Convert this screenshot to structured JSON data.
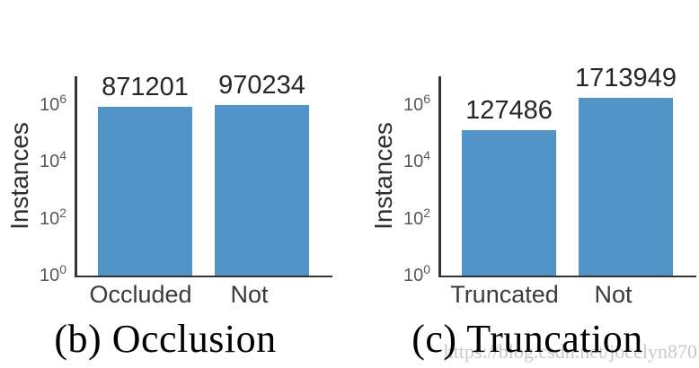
{
  "figure": {
    "background": "#ffffff",
    "watermark": {
      "text": "https://blog.csdn.net/jocelyn870",
      "color": "#c9c9c9"
    }
  },
  "chart_data": [
    {
      "type": "bar",
      "caption": "(b) Occlusion",
      "ylabel": "Instances",
      "xlabel": "",
      "yscale": "log",
      "ylim": [
        1,
        10000000
      ],
      "ytick_exponents": [
        0,
        2,
        4,
        6
      ],
      "ytick_labels": [
        "10^0",
        "10^2",
        "10^4",
        "10^6"
      ],
      "grid": false,
      "legend": false,
      "categories": [
        "Occluded",
        "Not"
      ],
      "values": [
        871201,
        970234
      ],
      "bar_labels": [
        "871201",
        "970234"
      ],
      "bar_color": "#5294c7",
      "axis_color": "#333333"
    },
    {
      "type": "bar",
      "caption": "(c) Truncation",
      "ylabel": "Instances",
      "xlabel": "",
      "yscale": "log",
      "ylim": [
        1,
        10000000
      ],
      "ytick_exponents": [
        0,
        2,
        4,
        6
      ],
      "ytick_labels": [
        "10^0",
        "10^2",
        "10^4",
        "10^6"
      ],
      "grid": false,
      "legend": false,
      "categories": [
        "Truncated",
        "Not"
      ],
      "values": [
        127486,
        1713949
      ],
      "bar_labels": [
        "127486",
        "1713949"
      ],
      "bar_color": "#5294c7",
      "axis_color": "#333333"
    }
  ]
}
